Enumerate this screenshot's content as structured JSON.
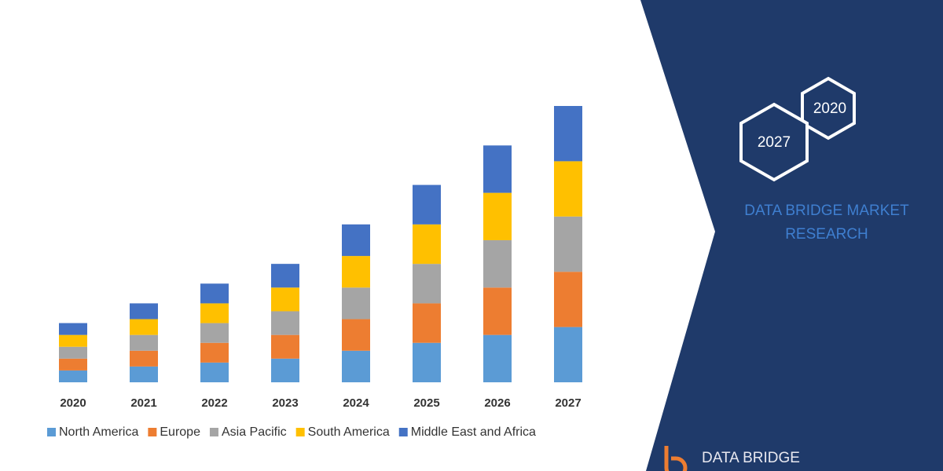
{
  "chart_data": {
    "type": "stacked_bar",
    "categories": [
      "2020",
      "2021",
      "2022",
      "2023",
      "2024",
      "2025",
      "2026",
      "2027"
    ],
    "series": [
      {
        "name": "North America",
        "color": "#5b9bd5",
        "values": [
          15,
          20,
          25,
          30,
          40,
          50,
          60,
          70
        ]
      },
      {
        "name": "Europe",
        "color": "#ed7d31",
        "values": [
          15,
          20,
          25,
          30,
          40,
          50,
          60,
          70
        ]
      },
      {
        "name": "Asia Pacific",
        "color": "#a5a5a5",
        "values": [
          15,
          20,
          25,
          30,
          40,
          50,
          60,
          70
        ]
      },
      {
        "name": "South America",
        "color": "#ffc000",
        "values": [
          15,
          20,
          25,
          30,
          40,
          50,
          60,
          70
        ]
      },
      {
        "name": "Middle East and Africa",
        "color": "#4472c4",
        "values": [
          15,
          20,
          25,
          30,
          40,
          50,
          60,
          70
        ]
      }
    ],
    "legend": "bottom"
  },
  "panel": {
    "badges": [
      "2020",
      "2027"
    ],
    "brand": [
      "DATA BRIDGE MARKET",
      "RESEARCH"
    ],
    "logo": "DATA BRIDGE"
  }
}
